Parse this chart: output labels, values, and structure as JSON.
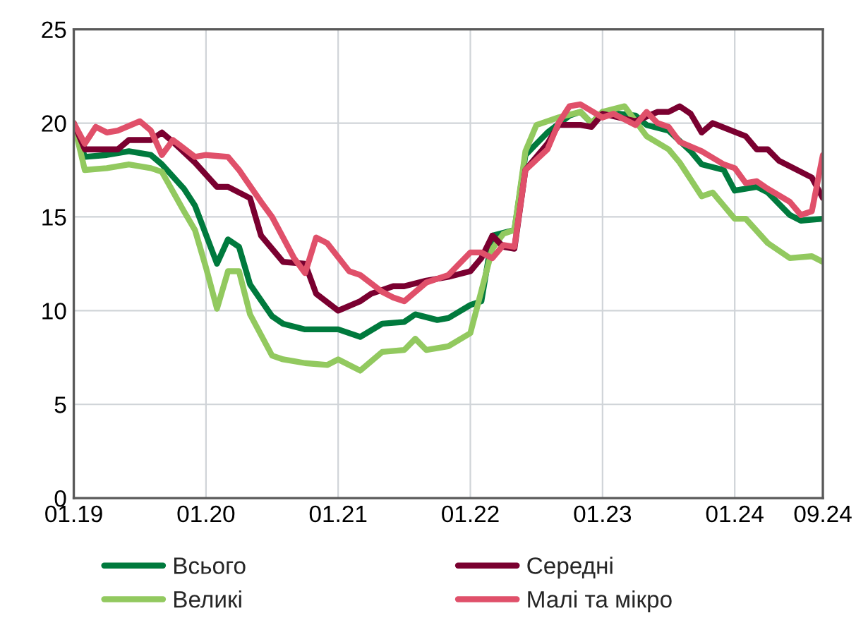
{
  "chart_data": {
    "type": "line",
    "xlim": [
      "2019-01",
      "2024-09"
    ],
    "xticks": [
      {
        "value": "2019-01",
        "label": "01.19"
      },
      {
        "value": "2020-01",
        "label": "01.20"
      },
      {
        "value": "2021-01",
        "label": "01.21"
      },
      {
        "value": "2022-01",
        "label": "01.22"
      },
      {
        "value": "2023-01",
        "label": "01.23"
      },
      {
        "value": "2024-01",
        "label": "01.24"
      },
      {
        "value": "2024-09",
        "label": "09.24"
      }
    ],
    "ylim": [
      0,
      25
    ],
    "yticks": [
      0,
      5,
      10,
      15,
      20,
      25
    ],
    "grid": true,
    "legend": "bottom",
    "marker": "none",
    "line_style": "solid",
    "series": [
      {
        "name": "Всього",
        "color": "#007a3d",
        "x": [
          "2019-01",
          "2019-02",
          "2019-04",
          "2019-06",
          "2019-08",
          "2019-09",
          "2019-11",
          "2019-12",
          "2020-02",
          "2020-03",
          "2020-04",
          "2020-05",
          "2020-07",
          "2020-08",
          "2020-10",
          "2021-01",
          "2021-03",
          "2021-05",
          "2021-07",
          "2021-08",
          "2021-10",
          "2021-11",
          "2022-01",
          "2022-02",
          "2022-03",
          "2022-05",
          "2022-06",
          "2022-08",
          "2022-10",
          "2022-11",
          "2022-12",
          "2023-01",
          "2023-04",
          "2023-05",
          "2023-07",
          "2023-09",
          "2023-10",
          "2023-12",
          "2024-01",
          "2024-03",
          "2024-04",
          "2024-06",
          "2024-07",
          "2024-09"
        ],
        "values": [
          20,
          18.2,
          18.3,
          18.5,
          18.3,
          17.8,
          16.5,
          15.6,
          12.5,
          13.8,
          13.4,
          11.4,
          9.7,
          9.3,
          9.0,
          9.0,
          8.6,
          9.3,
          9.4,
          9.8,
          9.5,
          9.6,
          10.3,
          10.5,
          14.0,
          14.3,
          18.3,
          19.5,
          20.4,
          20.6,
          20.0,
          20.6,
          20.4,
          19.9,
          19.6,
          18.5,
          17.8,
          17.5,
          16.4,
          16.6,
          16.3,
          15.1,
          14.8,
          14.9
        ]
      },
      {
        "name": "Великі",
        "color": "#92c95f",
        "x": [
          "2019-01",
          "2019-02",
          "2019-04",
          "2019-06",
          "2019-08",
          "2019-09",
          "2019-11",
          "2019-12",
          "2020-01",
          "2020-02",
          "2020-03",
          "2020-04",
          "2020-05",
          "2020-07",
          "2020-08",
          "2020-10",
          "2020-12",
          "2021-01",
          "2021-03",
          "2021-05",
          "2021-07",
          "2021-08",
          "2021-09",
          "2021-11",
          "2022-01",
          "2022-03",
          "2022-04",
          "2022-05",
          "2022-06",
          "2022-07",
          "2022-09",
          "2022-11",
          "2022-12",
          "2023-01",
          "2023-03",
          "2023-04",
          "2023-05",
          "2023-07",
          "2023-08",
          "2023-10",
          "2023-11",
          "2024-01",
          "2024-02",
          "2024-04",
          "2024-06",
          "2024-08",
          "2024-09"
        ],
        "values": [
          20,
          17.5,
          17.6,
          17.8,
          17.6,
          17.4,
          15.3,
          14.3,
          12.3,
          10.1,
          12.1,
          12.1,
          9.8,
          7.6,
          7.4,
          7.2,
          7.1,
          7.4,
          6.8,
          7.8,
          7.9,
          8.5,
          7.9,
          8.1,
          8.8,
          13.3,
          14.1,
          14.3,
          18.5,
          19.9,
          20.3,
          20.6,
          20.0,
          20.6,
          20.9,
          20.1,
          19.3,
          18.6,
          17.9,
          16.1,
          16.3,
          14.9,
          14.9,
          13.6,
          12.8,
          12.9,
          12.6
        ]
      },
      {
        "name": "Середні",
        "color": "#7a0030",
        "x": [
          "2019-01",
          "2019-02",
          "2019-04",
          "2019-05",
          "2019-06",
          "2019-08",
          "2019-09",
          "2019-10",
          "2019-12",
          "2020-02",
          "2020-03",
          "2020-05",
          "2020-06",
          "2020-08",
          "2020-10",
          "2020-11",
          "2021-01",
          "2021-03",
          "2021-04",
          "2021-06",
          "2021-07",
          "2021-09",
          "2021-11",
          "2022-01",
          "2022-02",
          "2022-03",
          "2022-04",
          "2022-05",
          "2022-06",
          "2022-08",
          "2022-09",
          "2022-11",
          "2022-12",
          "2023-01",
          "2023-04",
          "2023-06",
          "2023-07",
          "2023-08",
          "2023-09",
          "2023-10",
          "2023-11",
          "2024-02",
          "2024-03",
          "2024-04",
          "2024-05",
          "2024-07",
          "2024-08",
          "2024-09"
        ],
        "values": [
          20,
          18.6,
          18.6,
          18.6,
          19.1,
          19.1,
          19.5,
          19.0,
          17.9,
          16.6,
          16.6,
          16.0,
          14.0,
          12.6,
          12.5,
          10.9,
          10.0,
          10.5,
          10.9,
          11.3,
          11.3,
          11.6,
          11.8,
          12.1,
          12.8,
          14.0,
          13.4,
          13.3,
          17.5,
          18.9,
          19.9,
          19.9,
          19.8,
          20.5,
          20.1,
          20.6,
          20.6,
          20.9,
          20.5,
          19.5,
          20.0,
          19.3,
          18.6,
          18.6,
          18.0,
          17.4,
          17.1,
          16.0
        ]
      },
      {
        "name": "Малі та мікро",
        "color": "#e0506a",
        "x": [
          "2019-01",
          "2019-02",
          "2019-03",
          "2019-04",
          "2019-05",
          "2019-07",
          "2019-08",
          "2019-09",
          "2019-10",
          "2019-12",
          "2020-01",
          "2020-03",
          "2020-04",
          "2020-06",
          "2020-07",
          "2020-09",
          "2020-10",
          "2020-11",
          "2020-12",
          "2021-02",
          "2021-03",
          "2021-05",
          "2021-06",
          "2021-07",
          "2021-09",
          "2021-11",
          "2022-01",
          "2022-02",
          "2022-03",
          "2022-04",
          "2022-05",
          "2022-06",
          "2022-08",
          "2022-09",
          "2022-10",
          "2022-11",
          "2023-01",
          "2023-02",
          "2023-04",
          "2023-05",
          "2023-06",
          "2023-07",
          "2023-08",
          "2023-10",
          "2023-12",
          "2024-01",
          "2024-02",
          "2024-03",
          "2024-04",
          "2024-06",
          "2024-07",
          "2024-08",
          "2024-09"
        ],
        "values": [
          20,
          18.9,
          19.8,
          19.5,
          19.6,
          20.1,
          19.6,
          18.3,
          19.1,
          18.2,
          18.3,
          18.2,
          17.5,
          15.8,
          15.0,
          12.8,
          12.0,
          13.9,
          13.6,
          12.1,
          11.9,
          11.0,
          10.7,
          10.5,
          11.5,
          11.9,
          13.1,
          13.1,
          12.8,
          13.5,
          13.4,
          17.5,
          18.6,
          20.0,
          20.9,
          21.0,
          20.3,
          20.5,
          19.9,
          20.6,
          20.0,
          19.8,
          19.0,
          18.5,
          17.8,
          17.6,
          16.8,
          16.9,
          16.5,
          15.8,
          15.1,
          15.3,
          18.3
        ]
      }
    ]
  }
}
